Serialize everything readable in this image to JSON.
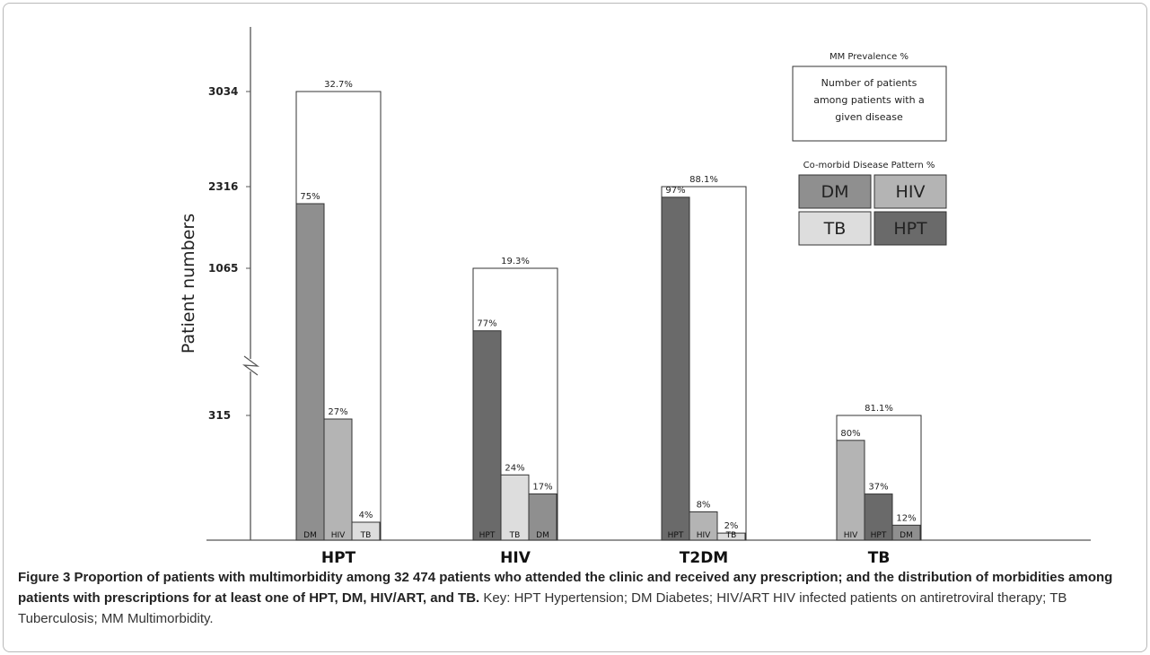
{
  "chart_data": {
    "type": "bar",
    "ylabel": "Patient numbers",
    "y_ticks": [
      "3034",
      "2316",
      "1065",
      "315"
    ],
    "axis_break": true,
    "groups": [
      {
        "name": "HPT",
        "total": 3034,
        "total_label": "3034",
        "mm_prevalence": "32.7%",
        "bars": [
          {
            "disease": "DM",
            "percent": 75,
            "label": "75%",
            "color": "#8f8f8f"
          },
          {
            "disease": "HIV",
            "percent": 27,
            "label": "27%",
            "color": "#b4b4b4"
          },
          {
            "disease": "TB",
            "percent": 4,
            "label": "4%",
            "color": "#dddddd"
          }
        ]
      },
      {
        "name": "HIV",
        "total": 1065,
        "total_label": "1065",
        "mm_prevalence": "19.3%",
        "bars": [
          {
            "disease": "HPT",
            "percent": 77,
            "label": "77%",
            "color": "#6a6a6a"
          },
          {
            "disease": "TB",
            "percent": 24,
            "label": "24%",
            "color": "#dddddd"
          },
          {
            "disease": "DM",
            "percent": 17,
            "label": "17%",
            "color": "#8f8f8f"
          }
        ]
      },
      {
        "name": "T2DM",
        "total": 2316,
        "total_label": "2316",
        "mm_prevalence": "88.1%",
        "bars": [
          {
            "disease": "HPT",
            "percent": 97,
            "label": "97%",
            "color": "#6a6a6a"
          },
          {
            "disease": "HIV",
            "percent": 8,
            "label": "8%",
            "color": "#b4b4b4"
          },
          {
            "disease": "TB",
            "percent": 2,
            "label": "2%",
            "color": "#dddddd"
          }
        ]
      },
      {
        "name": "TB",
        "total": 315,
        "total_label": "315",
        "mm_prevalence": "81.1%",
        "bars": [
          {
            "disease": "HIV",
            "percent": 80,
            "label": "80%",
            "color": "#b4b4b4"
          },
          {
            "disease": "HPT",
            "percent": 37,
            "label": "37%",
            "color": "#6a6a6a"
          },
          {
            "disease": "DM",
            "percent": 12,
            "label": "12%",
            "color": "#8f8f8f"
          }
        ]
      }
    ],
    "legend": {
      "mm_title": "MM Prevalence %",
      "mm_box_lines": [
        "Number of patients",
        "among patients with a",
        "given disease"
      ],
      "comorbid_title": "Co-morbid Disease Pattern %",
      "swatches": [
        {
          "label": "DM",
          "color": "#8f8f8f"
        },
        {
          "label": "HIV",
          "color": "#b4b4b4"
        },
        {
          "label": "TB",
          "color": "#dddddd"
        },
        {
          "label": "HPT",
          "color": "#6a6a6a"
        }
      ]
    }
  },
  "caption": {
    "bold": "Figure 3 Proportion of patients with multimorbidity among 32 474 patients who attended the clinic and received any prescription; and the distribution of morbidities among patients with prescriptions for at least one of HPT, DM, HIV/ART, and TB.",
    "key": "Key: HPT Hypertension; DM Diabetes; HIV/ART HIV infected patients on antiretroviral therapy; TB Tuberculosis; MM Multimorbidity."
  }
}
